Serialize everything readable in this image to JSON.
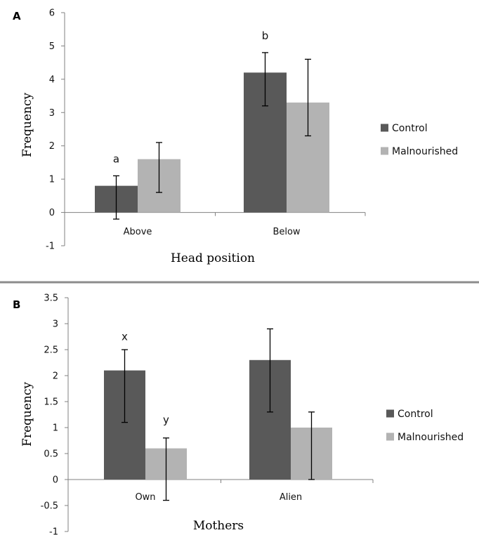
{
  "divider_color": "#8c8c8c",
  "chart_data": [
    {
      "panel": "A",
      "type": "bar",
      "title": "",
      "xlabel": "Head position",
      "ylabel": "Frequency",
      "ylim": [
        -1,
        6
      ],
      "yticks": [
        -1,
        0,
        1,
        2,
        3,
        4,
        5,
        6
      ],
      "grid": false,
      "legend_position": "right",
      "categories": [
        "Above",
        "Below"
      ],
      "series": [
        {
          "name": "Control",
          "color": "#595959",
          "values": [
            0.8,
            4.2
          ],
          "error_low": [
            -0.2,
            3.2
          ],
          "error_high": [
            1.1,
            4.8
          ]
        },
        {
          "name": "Malnourished",
          "color": "#b3b3b3",
          "values": [
            1.6,
            3.3
          ],
          "error_low": [
            0.6,
            2.3
          ],
          "error_high": [
            2.1,
            4.6
          ]
        }
      ],
      "annotations": [
        {
          "text": "a",
          "category": "Above",
          "series": "Control",
          "y": 1.6
        },
        {
          "text": "b",
          "category": "Below",
          "series": "Control",
          "y": 5.3
        }
      ]
    },
    {
      "panel": "B",
      "type": "bar",
      "title": "",
      "xlabel": "Mothers",
      "ylabel": "Frequency",
      "ylim": [
        -1,
        3.5
      ],
      "yticks": [
        -1,
        -0.5,
        0,
        0.5,
        1,
        1.5,
        2,
        2.5,
        3,
        3.5
      ],
      "grid": false,
      "legend_position": "right",
      "categories": [
        "Own",
        "Alien"
      ],
      "series": [
        {
          "name": "Control",
          "color": "#595959",
          "values": [
            2.1,
            2.3
          ],
          "error_low": [
            1.1,
            1.3
          ],
          "error_high": [
            2.5,
            2.9
          ]
        },
        {
          "name": "Malnourished",
          "color": "#b3b3b3",
          "values": [
            0.6,
            1.0
          ],
          "error_low": [
            -0.4,
            0.0
          ],
          "error_high": [
            0.8,
            1.3
          ]
        }
      ],
      "annotations": [
        {
          "text": "x",
          "category": "Own",
          "series": "Control",
          "y": 2.75
        },
        {
          "text": "y",
          "category": "Own",
          "series": "Malnourished",
          "y": 1.15
        }
      ]
    }
  ]
}
